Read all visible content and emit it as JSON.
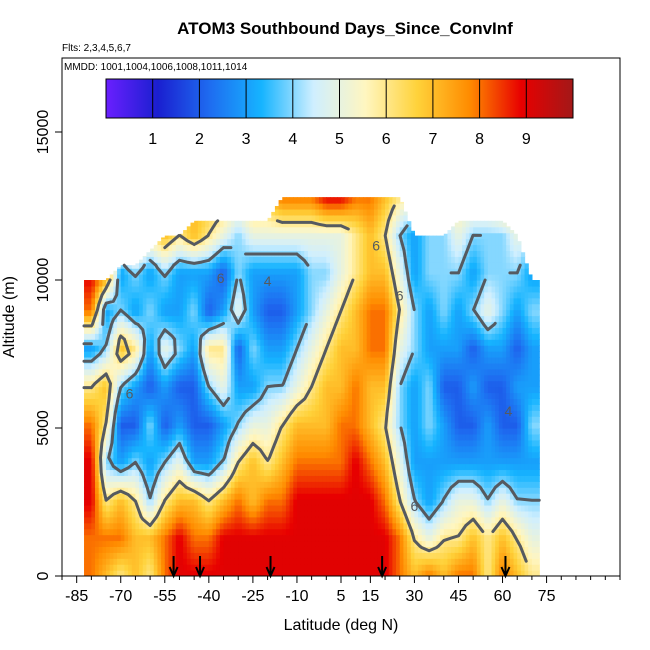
{
  "chart_data": {
    "type": "heatmap",
    "title": "ATOM3 Southbound Days_Since_ConvInf",
    "subtitle_flights": "Flts: 2,3,4,5,6,7",
    "subtitle_dates": "MMDD: 1001,1004,1006,1008,1011,1014",
    "xlabel": "Latitude (deg N)",
    "ylabel": "Altitude (m)",
    "xlim": [
      -90,
      100
    ],
    "ylim": [
      0,
      17500
    ],
    "x_ticks": [
      -85,
      -70,
      -55,
      -40,
      -25,
      -10,
      5,
      15,
      30,
      45,
      60,
      75
    ],
    "y_ticks": [
      0,
      5000,
      10000,
      15000
    ],
    "colorbar": {
      "range": [
        0,
        10
      ],
      "tick_values": [
        1,
        2,
        3,
        4,
        5,
        6,
        7,
        8,
        9
      ],
      "tick_labels": [
        "1",
        "2",
        "3",
        "4",
        "5",
        "6",
        "7",
        "8",
        "9"
      ],
      "stops": [
        "#6a1fff",
        "#1a1fd0",
        "#1e6cf0",
        "#16b4ff",
        "#cfefff",
        "#fff6c0",
        "#ffd23a",
        "#ff8c00",
        "#e80000",
        "#a31818"
      ],
      "placement": "top-inside"
    },
    "contour_levels": [
      4,
      6
    ],
    "contour_labels": [
      "4",
      "6"
    ],
    "arrow_latitudes": [
      -52,
      -43,
      -19,
      19,
      61
    ],
    "lat_columns": [
      -80,
      -75,
      -70,
      -65,
      -60,
      -55,
      -50,
      -45,
      -40,
      -35,
      -30,
      -25,
      -20,
      -15,
      -10,
      -5,
      0,
      5,
      10,
      15,
      20,
      25,
      30,
      35,
      40,
      45,
      50,
      55,
      60,
      65,
      70
    ],
    "top_altitude": [
      10000,
      10000,
      10500,
      10500,
      11000,
      11500,
      11500,
      12000,
      12000,
      12000,
      12000,
      12000,
      12000,
      12800,
      12800,
      12800,
      12800,
      12800,
      12800,
      12800,
      12800,
      12800,
      11500,
      11500,
      11500,
      12000,
      12000,
      12000,
      12000,
      11500,
      10000
    ],
    "profiles": [
      [
        8,
        8,
        9,
        9,
        8,
        6,
        3,
        8,
        9,
        8,
        7
      ],
      [
        7,
        8,
        6,
        4,
        6,
        7,
        4,
        3,
        8,
        9,
        7
      ],
      [
        6,
        8,
        7,
        3,
        2,
        4,
        7,
        4,
        3,
        7,
        8
      ],
      [
        7,
        7,
        6,
        4,
        2,
        3,
        6,
        3,
        4,
        7,
        7
      ],
      [
        6,
        7,
        4,
        3,
        4,
        2,
        3,
        4,
        3,
        6,
        7
      ],
      [
        8,
        8,
        6,
        4,
        2,
        3,
        5,
        3,
        4,
        7,
        8
      ],
      [
        9,
        9,
        7,
        5,
        3,
        2,
        4,
        3,
        3,
        6,
        7
      ],
      [
        9,
        8,
        7,
        3,
        2,
        2,
        3,
        4,
        3,
        7,
        7
      ],
      [
        9,
        8,
        6,
        3,
        2,
        4,
        6,
        2,
        3,
        6,
        7
      ],
      [
        9,
        9,
        7,
        4,
        3,
        5,
        6,
        3,
        2,
        5,
        7
      ],
      [
        9,
        9,
        8,
        6,
        4,
        3,
        2,
        5,
        4,
        4,
        6
      ],
      [
        9,
        9,
        7,
        7,
        5,
        3,
        4,
        3,
        3,
        5,
        7
      ],
      [
        9,
        9,
        8,
        6,
        5,
        4,
        3,
        2,
        3,
        5,
        7
      ],
      [
        9,
        9,
        8,
        7,
        6,
        4,
        3,
        2,
        3,
        5,
        8
      ],
      [
        9,
        9,
        9,
        8,
        7,
        5,
        4,
        3,
        3,
        5,
        8
      ],
      [
        9,
        9,
        9,
        8,
        7,
        6,
        5,
        4,
        4,
        5,
        8
      ],
      [
        9,
        9,
        9,
        8,
        7,
        7,
        6,
        5,
        4,
        5,
        9
      ],
      [
        9,
        9,
        9,
        8,
        8,
        7,
        7,
        6,
        5,
        5,
        9
      ],
      [
        9,
        9,
        9,
        9,
        8,
        8,
        7,
        7,
        6,
        6,
        8
      ],
      [
        9,
        9,
        9,
        8,
        7,
        7,
        8,
        8,
        7,
        7,
        8
      ],
      [
        9,
        9,
        8,
        7,
        6,
        7,
        8,
        8,
        7,
        6,
        7
      ],
      [
        8,
        8,
        6,
        5,
        4,
        4,
        5,
        6,
        5,
        4,
        6
      ],
      [
        7,
        6,
        4,
        3,
        3,
        3,
        4,
        4,
        3,
        3,
        5
      ],
      [
        8,
        5,
        3,
        3,
        4,
        4,
        3,
        3,
        4,
        4,
        5
      ],
      [
        7,
        6,
        4,
        3,
        3,
        2,
        3,
        4,
        4,
        4,
        5
      ],
      [
        8,
        6,
        5,
        3,
        2,
        2,
        3,
        3,
        4,
        5,
        6
      ],
      [
        8,
        7,
        5,
        3,
        2,
        3,
        2,
        4,
        3,
        4,
        6
      ],
      [
        6,
        6,
        4,
        3,
        3,
        2,
        3,
        5,
        4,
        4,
        6
      ],
      [
        8,
        7,
        5,
        3,
        2,
        2,
        3,
        4,
        4,
        4,
        7
      ],
      [
        7,
        6,
        4,
        3,
        2,
        3,
        2,
        3,
        4,
        5,
        7
      ],
      [
        6,
        5,
        4,
        3,
        4,
        3,
        3,
        4,
        3,
        4,
        8
      ]
    ]
  }
}
